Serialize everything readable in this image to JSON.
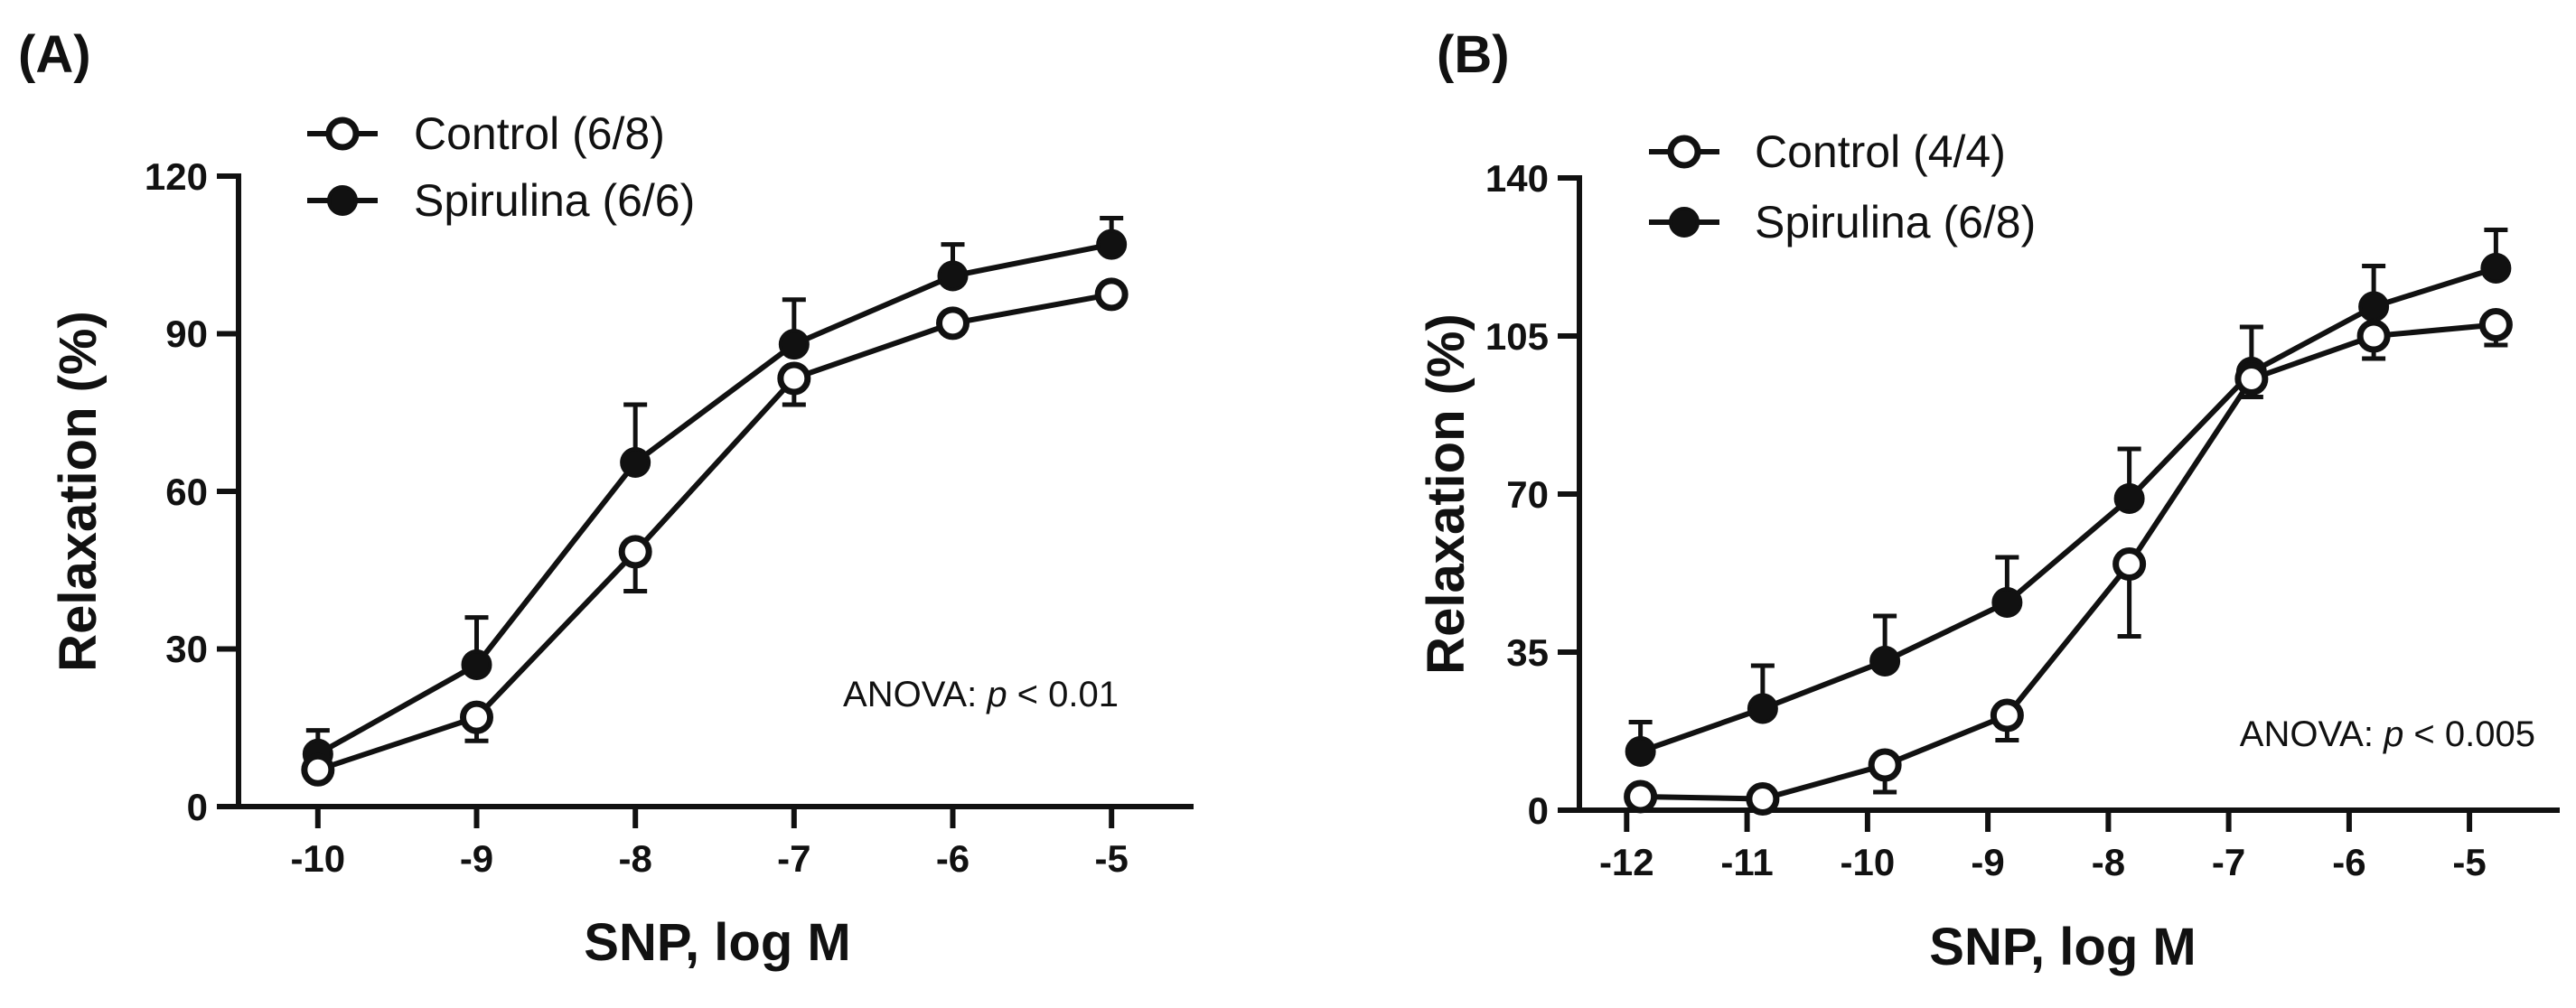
{
  "chart_data": [
    {
      "type": "line",
      "panel_label": "(A)",
      "xlabel": "SNP, log M",
      "ylabel": "Relaxation (%)",
      "x": [
        -10,
        -9,
        -8,
        -7,
        -6,
        -5
      ],
      "x_tick_labels": [
        "-10",
        "-9",
        "-8",
        "-7",
        "-6",
        "-5"
      ],
      "xlim": [
        -10.5,
        -4.5
      ],
      "ylim": [
        0,
        120
      ],
      "y_ticks": [
        0,
        30,
        60,
        90,
        120
      ],
      "y_tick_labels": [
        "0",
        "30",
        "60",
        "90",
        "120"
      ],
      "legend_position": "top-left",
      "annotation": {
        "prefix": "ANOVA: ",
        "italic": "p",
        "suffix": " < 0.01"
      },
      "series": [
        {
          "name": "Control (6/8)",
          "marker": "open-circle",
          "values": [
            7,
            17,
            48.5,
            81.5,
            92,
            97.5
          ],
          "errors": [
            0,
            4.5,
            7.5,
            5,
            0,
            0
          ]
        },
        {
          "name": "Spirulina (6/6)",
          "marker": "filled-circle",
          "values": [
            10,
            27,
            65.5,
            88,
            101,
            107
          ],
          "errors": [
            4.5,
            9,
            11,
            8.5,
            6,
            5
          ]
        }
      ]
    },
    {
      "type": "line",
      "panel_label": "(B)",
      "xlabel": "SNP, log M",
      "ylabel": "Relaxation (%)",
      "x": [
        -12,
        -11,
        -10,
        -9,
        -8,
        -7,
        -6,
        -5
      ],
      "x_tick_labels": [
        "-12",
        "-11",
        "-10",
        "-9",
        "-8",
        "-7",
        "-6",
        "-5"
      ],
      "xlim": [
        -12.5,
        -4.5
      ],
      "ylim": [
        0,
        140
      ],
      "y_ticks": [
        0,
        35,
        70,
        105,
        140
      ],
      "y_tick_labels": [
        "0",
        "35",
        "70",
        "105",
        "140"
      ],
      "legend_position": "top-left",
      "annotation": {
        "prefix": "ANOVA: ",
        "italic": "p",
        "suffix": " < 0.005"
      },
      "series": [
        {
          "name": "Control (4/4)",
          "marker": "open-circle",
          "values": [
            3,
            2.5,
            10,
            21,
            54.5,
            95.5,
            105,
            107.5
          ],
          "errors": [
            0,
            0,
            6,
            5.5,
            16,
            4,
            5,
            4.5
          ]
        },
        {
          "name": "Spirulina (6/8)",
          "marker": "filled-circle",
          "values": [
            13,
            22.5,
            33,
            46,
            69,
            97,
            111.5,
            120
          ],
          "errors": [
            6.5,
            9.5,
            10,
            10,
            11,
            10,
            9,
            8.5
          ]
        }
      ]
    }
  ]
}
